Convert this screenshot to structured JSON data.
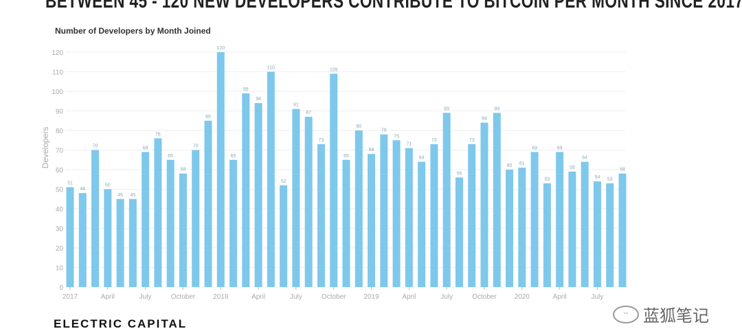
{
  "headline": "BETWEEN 45 - 120 NEW DEVELOPERS CONTRIBUTE TO BITCOIN PER MONTH SINCE 2017",
  "brand": "ELECTRIC CAPITAL",
  "watermark": "蓝狐笔记",
  "chart_data": {
    "type": "bar",
    "title": "Number of Developers by Month Joined",
    "xlabel": "",
    "ylabel": "Developers",
    "ylim": [
      0,
      120
    ],
    "yticks": [
      0,
      10,
      20,
      30,
      40,
      50,
      60,
      70,
      80,
      90,
      100,
      110,
      120
    ],
    "grid": true,
    "bar_color": "#7ec8ec",
    "categories": [
      "2017-01",
      "2017-02",
      "2017-03",
      "2017-04",
      "2017-05",
      "2017-06",
      "2017-07",
      "2017-08",
      "2017-09",
      "2017-10",
      "2017-11",
      "2017-12",
      "2018-01",
      "2018-02",
      "2018-03",
      "2018-04",
      "2018-05",
      "2018-06",
      "2018-07",
      "2018-08",
      "2018-09",
      "2018-10",
      "2018-11",
      "2018-12",
      "2019-01",
      "2019-02",
      "2019-03",
      "2019-04",
      "2019-05",
      "2019-06",
      "2019-07",
      "2019-08",
      "2019-09",
      "2019-10",
      "2019-11",
      "2019-12",
      "2020-01",
      "2020-02",
      "2020-03",
      "2020-04",
      "2020-05",
      "2020-06",
      "2020-07",
      "2020-08",
      "2020-09"
    ],
    "values": [
      51,
      48,
      70,
      50,
      45,
      45,
      69,
      76,
      65,
      58,
      70,
      85,
      120,
      65,
      99,
      94,
      110,
      52,
      91,
      87,
      73,
      109,
      65,
      80,
      68,
      78,
      75,
      71,
      64,
      73,
      89,
      56,
      73,
      84,
      89,
      60,
      61,
      69,
      53,
      69,
      59,
      64,
      54,
      53,
      58
    ],
    "xtick_labels": [
      {
        "index": 0,
        "label": "2017"
      },
      {
        "index": 3,
        "label": "April"
      },
      {
        "index": 6,
        "label": "July"
      },
      {
        "index": 9,
        "label": "October"
      },
      {
        "index": 12,
        "label": "2018"
      },
      {
        "index": 15,
        "label": "April"
      },
      {
        "index": 18,
        "label": "July"
      },
      {
        "index": 21,
        "label": "October"
      },
      {
        "index": 24,
        "label": "2019"
      },
      {
        "index": 27,
        "label": "April"
      },
      {
        "index": 30,
        "label": "July"
      },
      {
        "index": 33,
        "label": "October"
      },
      {
        "index": 36,
        "label": "2020"
      },
      {
        "index": 39,
        "label": "April"
      },
      {
        "index": 42,
        "label": "July"
      }
    ]
  }
}
